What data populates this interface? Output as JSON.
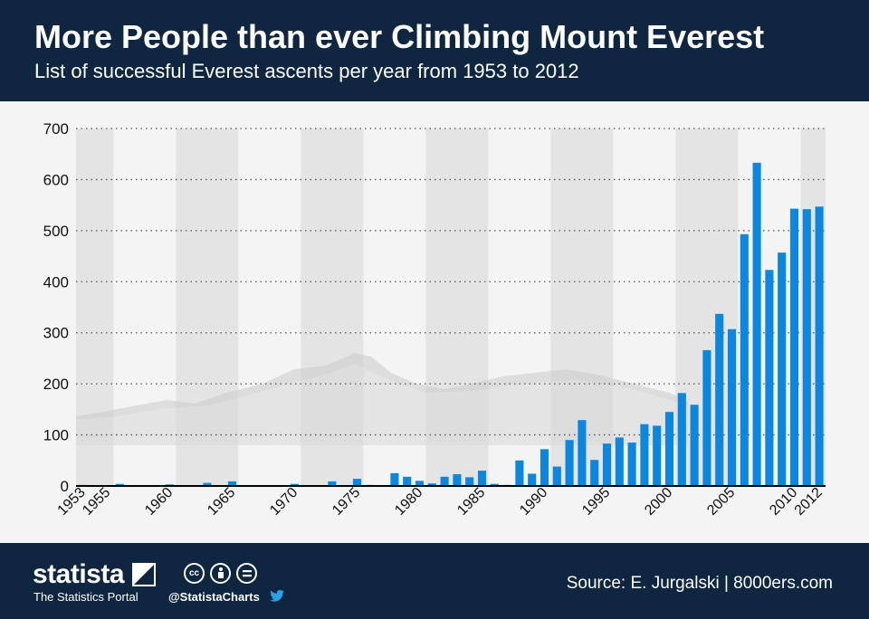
{
  "header": {
    "title": "More People than ever Climbing Mount Everest",
    "subtitle": "List of successful Everest ascents per year from 1953 to 2012"
  },
  "footer": {
    "logo": "statista",
    "logo_sub": "The Statistics Portal",
    "handle": "@StatistaCharts",
    "source": "Source: E. Jurgalski | 8000ers.com",
    "cc_icons": [
      "cc-icon",
      "by-icon",
      "nd-icon"
    ],
    "twitter_icon": "twitter-bird-icon"
  },
  "colors": {
    "header_bg": "#0f2640",
    "bar": "#0b87e0",
    "band": "#e4e4e4",
    "background": "#f4f4f4"
  },
  "chart_data": {
    "type": "bar",
    "title": "More People than ever Climbing Mount Everest",
    "subtitle": "List of successful Everest ascents per year from 1953 to 2012",
    "xlabel": "",
    "ylabel": "",
    "ylim": [
      0,
      700
    ],
    "yticks": [
      0,
      100,
      200,
      300,
      400,
      500,
      600,
      700
    ],
    "grid": true,
    "xtick_labels": [
      "1953",
      "1955",
      "1960",
      "1965",
      "1970",
      "1975",
      "1980",
      "1985",
      "1990",
      "1995",
      "2000",
      "2005",
      "2010",
      "2012"
    ],
    "categories": [
      1953,
      1954,
      1955,
      1956,
      1957,
      1958,
      1959,
      1960,
      1961,
      1962,
      1963,
      1964,
      1965,
      1966,
      1967,
      1968,
      1969,
      1970,
      1971,
      1972,
      1973,
      1974,
      1975,
      1976,
      1977,
      1978,
      1979,
      1980,
      1981,
      1982,
      1983,
      1984,
      1985,
      1986,
      1987,
      1988,
      1989,
      1990,
      1991,
      1992,
      1993,
      1994,
      1995,
      1996,
      1997,
      1998,
      1999,
      2000,
      2001,
      2002,
      2003,
      2004,
      2005,
      2006,
      2007,
      2008,
      2009,
      2010,
      2011,
      2012
    ],
    "values": [
      2,
      0,
      0,
      4,
      0,
      0,
      0,
      3,
      0,
      0,
      6,
      0,
      9,
      0,
      0,
      0,
      0,
      4,
      0,
      0,
      9,
      0,
      14,
      2,
      0,
      25,
      18,
      10,
      5,
      18,
      23,
      17,
      30,
      4,
      2,
      50,
      24,
      72,
      38,
      90,
      129,
      51,
      83,
      95,
      85,
      121,
      118,
      145,
      182,
      159,
      266,
      337,
      307,
      493,
      633,
      423,
      457,
      543,
      542,
      547
    ]
  }
}
